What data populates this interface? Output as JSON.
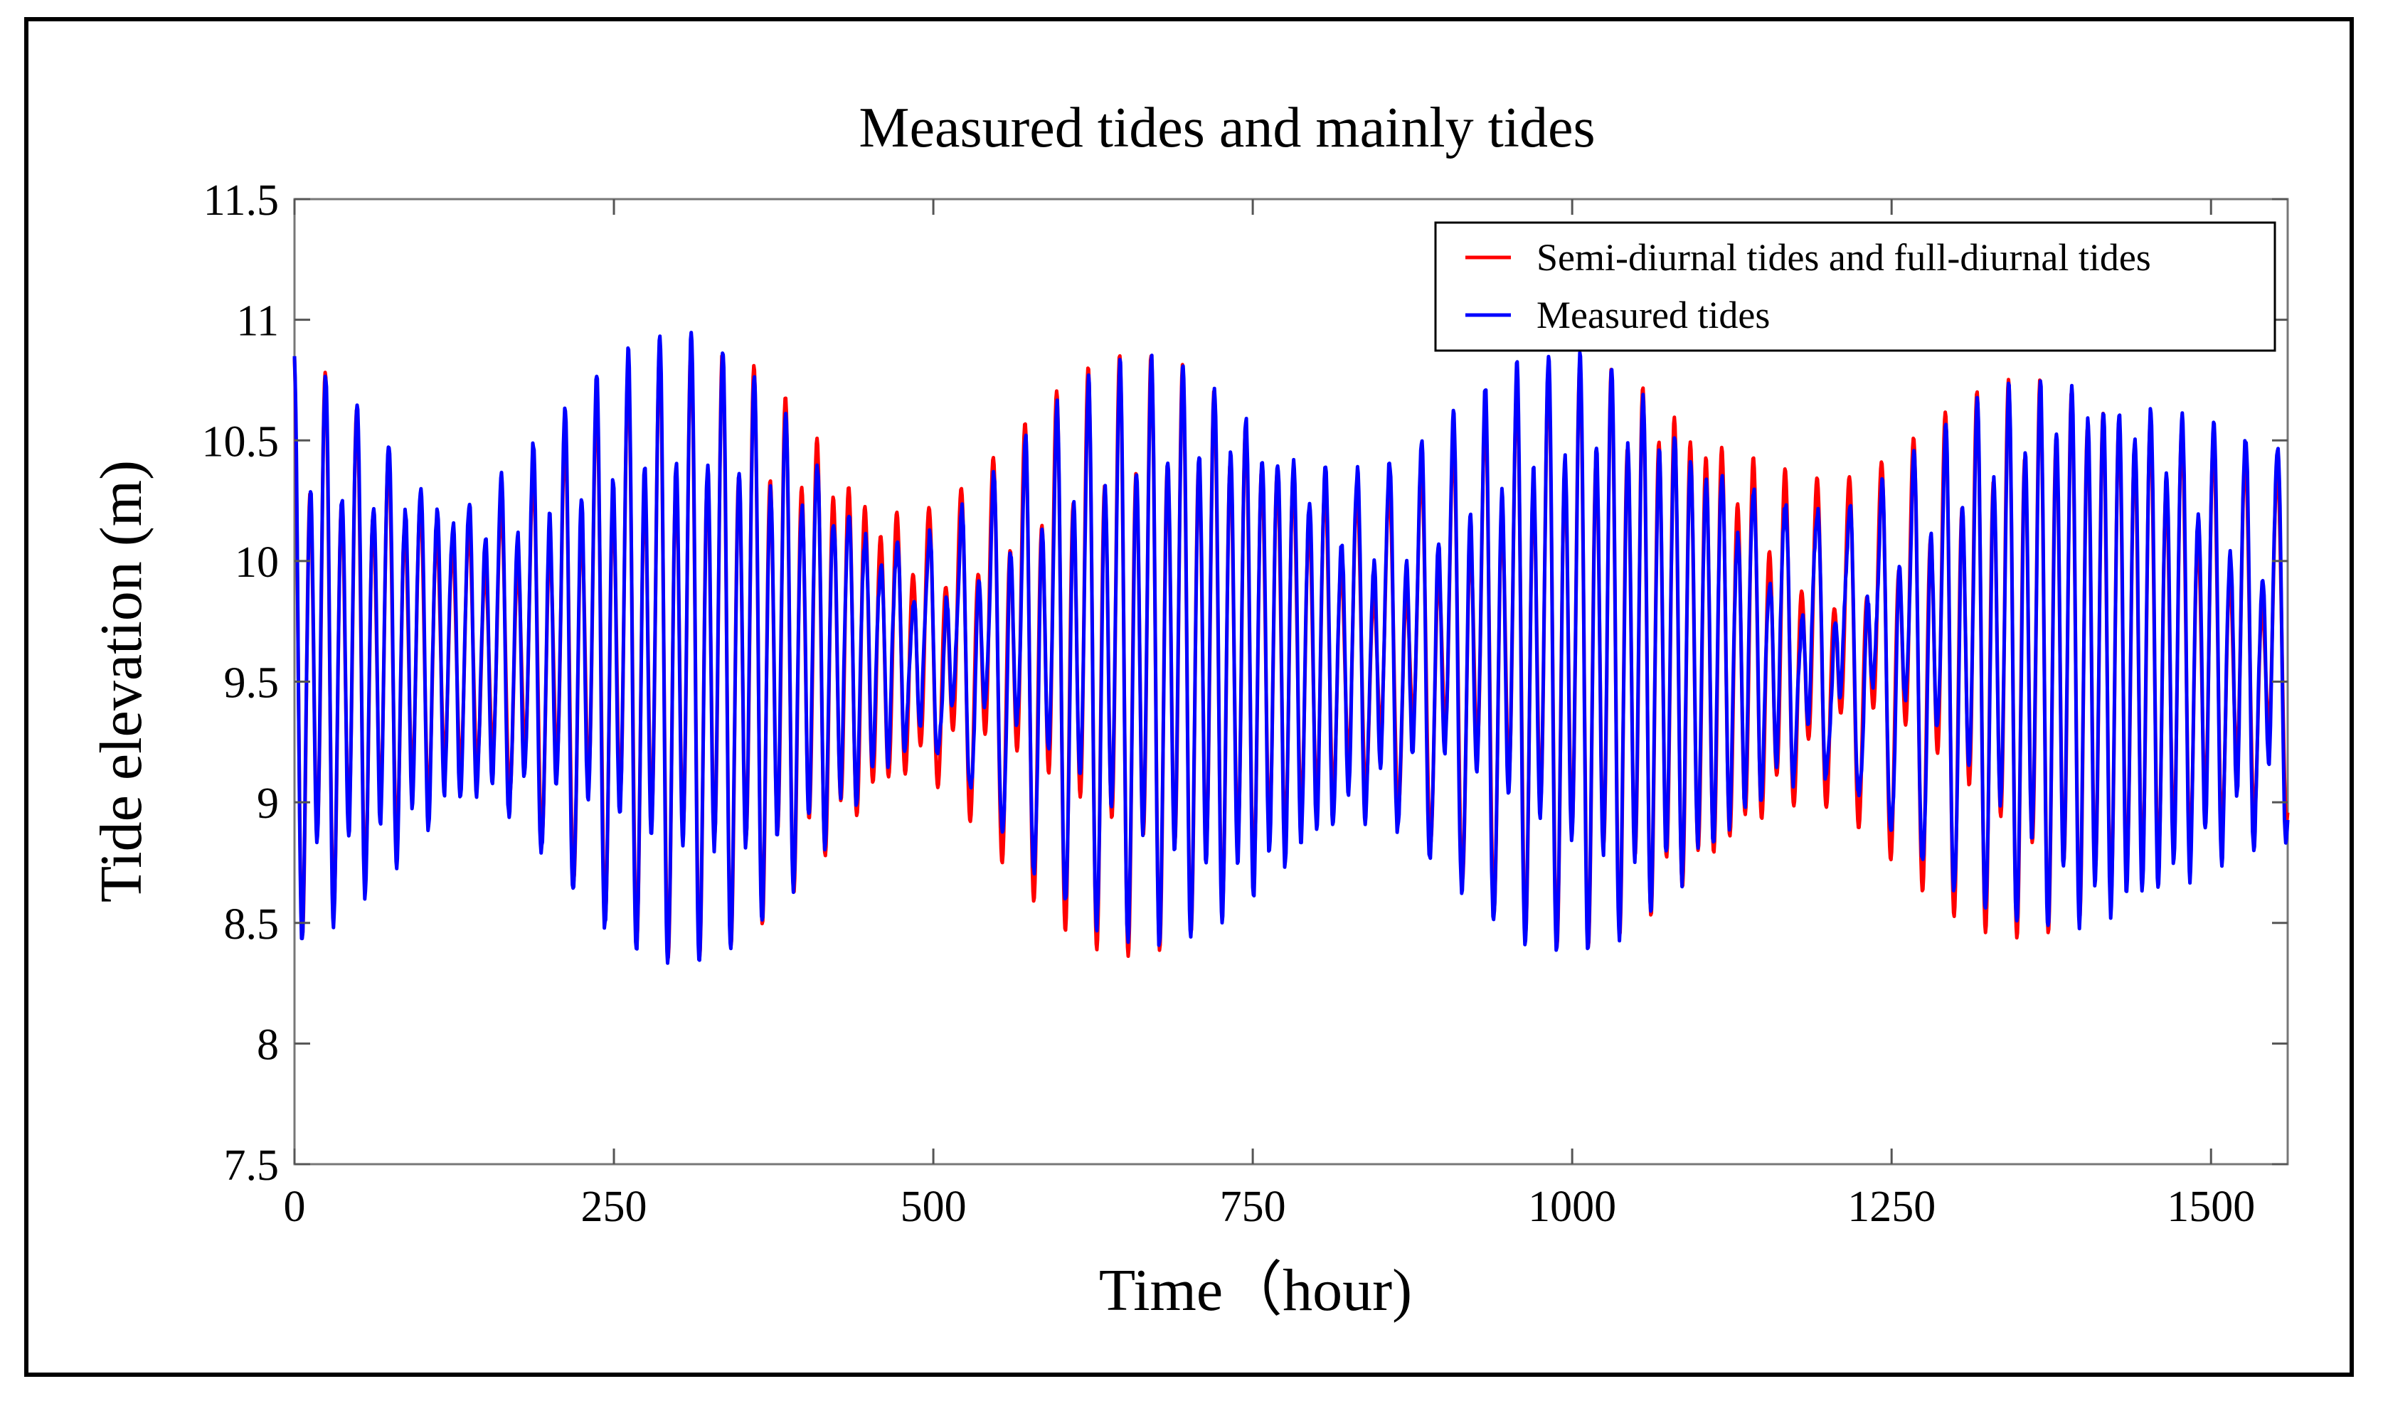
{
  "chart_data": {
    "type": "line",
    "title": "Measured tides and mainly tides",
    "xlabel": "Time（hour)",
    "ylabel": "Tide elevation (m)",
    "xlim": [
      0,
      1560
    ],
    "ylim": [
      7.5,
      11.5
    ],
    "xticks": [
      0,
      250,
      500,
      750,
      1000,
      1250,
      1500
    ],
    "xtick_labels": [
      "0",
      "250",
      "500",
      "750",
      "1000",
      "1250",
      "1500"
    ],
    "yticks": [
      7.5,
      8,
      8.5,
      9,
      9.5,
      10,
      10.5,
      11,
      11.5
    ],
    "ytick_labels": [
      "7.5",
      "8",
      "8.5",
      "9",
      "9.5",
      "10",
      "10.5",
      "11",
      "11.5"
    ],
    "grid": false,
    "legend_position": "top-right",
    "series": [
      {
        "name": "Semi-diurnal tides and full-diurnal tides",
        "color": "#ff0000",
        "description": "Synthetic harmonic tide, approximated: mean ~9.6 m, range ~8.4–10.8 m, period ~12.4 h with spring-neap modulation"
      },
      {
        "name": "Measured tides",
        "color": "#0000ff",
        "description": "Measured tide elevation, approximated: mean ~9.6 m, range ~8.0–11.0 m, period ~12.4 h"
      }
    ],
    "samples_per_hour": 1
  }
}
